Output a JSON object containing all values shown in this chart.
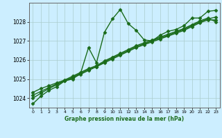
{
  "title": "Graphe pression niveau de la mer (hPa)",
  "background_color": "#cceeff",
  "grid_color": "#aacccc",
  "line_color": "#1a6b1a",
  "xlim": [
    -0.5,
    23.5
  ],
  "ylim": [
    1023.5,
    1029.0
  ],
  "yticks": [
    1024,
    1025,
    1026,
    1027,
    1028
  ],
  "xticks": [
    0,
    1,
    2,
    3,
    4,
    5,
    6,
    7,
    8,
    9,
    10,
    11,
    12,
    13,
    14,
    15,
    16,
    17,
    18,
    19,
    20,
    21,
    22,
    23
  ],
  "series": [
    {
      "name": "line1_wiggly",
      "x": [
        0,
        1,
        2,
        3,
        4,
        5,
        6,
        7,
        8,
        9,
        10,
        11,
        12,
        13,
        14,
        15,
        16,
        17,
        18,
        19,
        20,
        21,
        22,
        23
      ],
      "y": [
        1023.7,
        1024.1,
        1024.4,
        1024.6,
        1024.9,
        1025.0,
        1025.3,
        1026.65,
        1025.85,
        1027.45,
        1028.15,
        1028.65,
        1027.9,
        1027.55,
        1027.05,
        1027.0,
        1027.3,
        1027.5,
        1027.6,
        1027.8,
        1028.2,
        1028.2,
        1028.55,
        1028.6
      ],
      "marker": "D",
      "markersize": 2.5,
      "linewidth": 1.0
    },
    {
      "name": "line2_straight",
      "x": [
        0,
        1,
        2,
        3,
        4,
        5,
        6,
        7,
        8,
        9,
        10,
        11,
        12,
        13,
        14,
        15,
        16,
        17,
        18,
        19,
        20,
        21,
        22,
        23
      ],
      "y": [
        1024.0,
        1024.25,
        1024.5,
        1024.7,
        1024.9,
        1025.05,
        1025.25,
        1025.45,
        1025.65,
        1025.85,
        1026.05,
        1026.25,
        1026.45,
        1026.65,
        1026.8,
        1026.95,
        1027.1,
        1027.25,
        1027.4,
        1027.55,
        1027.75,
        1027.95,
        1028.1,
        1028.1
      ],
      "marker": "D",
      "markersize": 2.5,
      "linewidth": 1.0
    },
    {
      "name": "line3_straight",
      "x": [
        0,
        1,
        2,
        3,
        4,
        5,
        6,
        7,
        8,
        9,
        10,
        11,
        12,
        13,
        14,
        15,
        16,
        17,
        18,
        19,
        20,
        21,
        22,
        23
      ],
      "y": [
        1024.15,
        1024.35,
        1024.55,
        1024.75,
        1024.9,
        1025.1,
        1025.3,
        1025.5,
        1025.65,
        1025.9,
        1026.1,
        1026.3,
        1026.5,
        1026.7,
        1026.85,
        1027.0,
        1027.15,
        1027.3,
        1027.45,
        1027.6,
        1027.8,
        1028.0,
        1028.15,
        1028.25
      ],
      "marker": "D",
      "markersize": 2.5,
      "linewidth": 1.0
    },
    {
      "name": "line4_straight",
      "x": [
        0,
        1,
        2,
        3,
        4,
        5,
        6,
        7,
        8,
        9,
        10,
        11,
        12,
        13,
        14,
        15,
        16,
        17,
        18,
        19,
        20,
        21,
        22,
        23
      ],
      "y": [
        1024.3,
        1024.5,
        1024.65,
        1024.8,
        1024.95,
        1025.15,
        1025.35,
        1025.55,
        1025.7,
        1025.95,
        1026.15,
        1026.35,
        1026.55,
        1026.75,
        1026.9,
        1027.05,
        1027.2,
        1027.35,
        1027.5,
        1027.65,
        1027.85,
        1028.05,
        1028.2,
        1028.0
      ],
      "marker": "D",
      "markersize": 2.5,
      "linewidth": 1.0
    }
  ]
}
